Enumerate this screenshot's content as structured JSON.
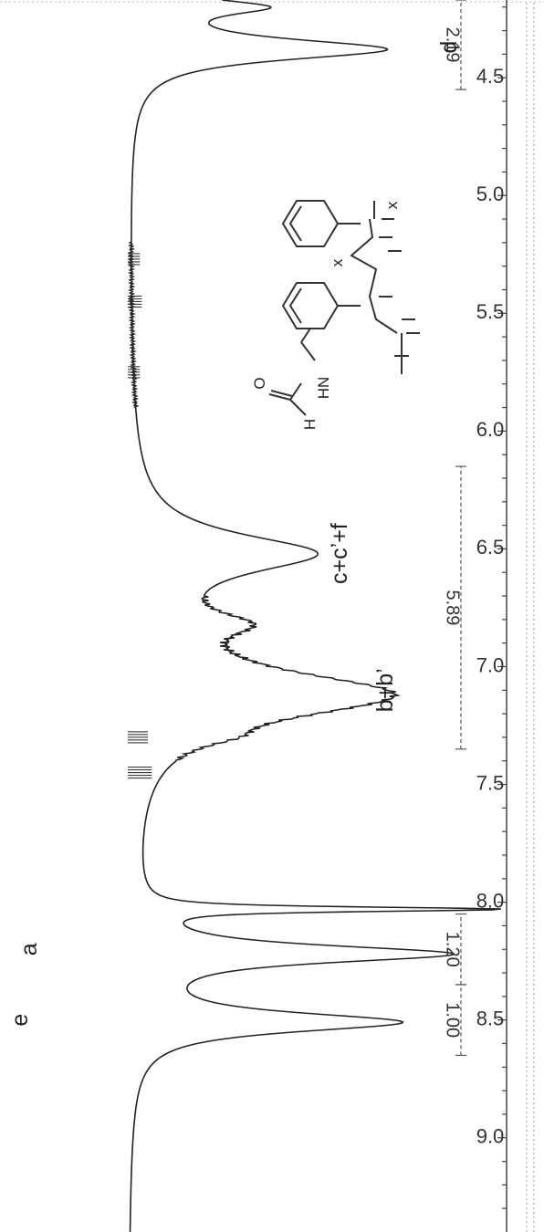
{
  "chart_data": {
    "type": "line",
    "title": "",
    "xlabel": "",
    "ylabel": "",
    "x_axis": {
      "reversed": true,
      "xlim": [
        9.4,
        4.17
      ],
      "ticks": [
        9.0,
        8.5,
        8.0,
        7.5,
        7.0,
        6.5,
        6.0,
        5.5,
        5.0,
        4.5
      ],
      "tick_labels": [
        "9.0",
        "8.5",
        "8.0",
        "7.5",
        "7.0",
        "6.5",
        "6.0",
        "5.5",
        "5.0",
        "4.5"
      ]
    },
    "grid": false,
    "peak_labels": [
      {
        "text": "e",
        "x": 8.5
      },
      {
        "text": "a",
        "x": 8.2
      },
      {
        "text": "b+b’",
        "x": 7.1
      },
      {
        "text": "c+c’+f",
        "x": 6.52
      },
      {
        "text": "d",
        "x": 4.37
      }
    ],
    "integrals": [
      {
        "from": 8.65,
        "to": 8.35,
        "value": "1.00"
      },
      {
        "from": 8.35,
        "to": 8.05,
        "value": "1.20"
      },
      {
        "from": 7.35,
        "to": 6.15,
        "value": "5.89"
      },
      {
        "from": 4.55,
        "to": 4.17,
        "value": "2.19"
      }
    ],
    "spectrum": {
      "baseline": 0.0,
      "peaks": [
        {
          "center": 8.51,
          "height": 0.66,
          "width": 0.05
        },
        {
          "center": 8.22,
          "height": 0.78,
          "width": 0.045
        },
        {
          "center": 8.03,
          "height": 0.88,
          "width": 0.012
        },
        {
          "center": 7.12,
          "height": 0.64,
          "width": 0.12
        },
        {
          "center": 6.52,
          "height": 0.44,
          "width": 0.1
        },
        {
          "center": 6.82,
          "height": 0.18,
          "width": 0.06
        },
        {
          "center": 7.3,
          "height": 0.07,
          "width": 0.04
        },
        {
          "center": 4.38,
          "height": 0.63,
          "width": 0.055
        },
        {
          "center": 4.2,
          "height": 0.3,
          "width": 0.04
        }
      ]
    },
    "structure": {
      "x_subscripts": [
        "x",
        "x"
      ],
      "atoms": [
        "HN",
        "O",
        "H"
      ]
    }
  }
}
